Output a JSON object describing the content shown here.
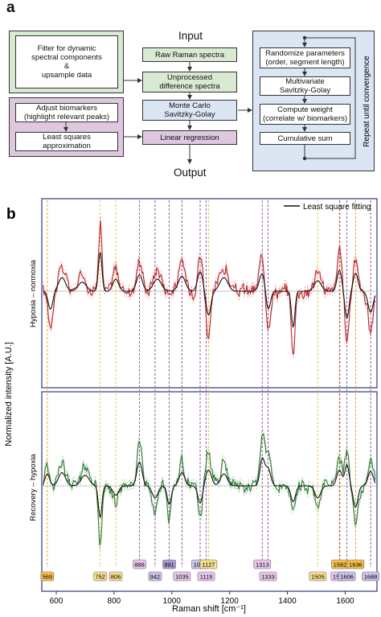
{
  "panel_a": {
    "letter": "a",
    "input_label": "Input",
    "output_label": "Output",
    "filter_box": "Filter for dynamic\nspectral components\n&\nupsample data",
    "adjust_box": "Adjust biomarkers\n(highlight relevant peaks)",
    "lsq_box": "Least squares\napproximation",
    "center_boxes": [
      "Raw Raman spectra",
      "Unprocessed\ndifference spectra",
      "Monte Carlo\nSavitzky-Golay",
      "Linear regression"
    ],
    "right_boxes": [
      "Randomize parameters\n(order, segment length)",
      "Multivariate\nSavitzky-Golay",
      "Compute weight\n(correlate w/ biomarkers)",
      "Cumulative sum"
    ],
    "repeat_label": "Repeat until convergence",
    "colors": {
      "green": "#d9ead3",
      "blue": "#dbe6f4",
      "purple": "#ddc8e0"
    }
  },
  "panel_b": {
    "letter": "b",
    "legend_label": "Least square fitting",
    "ylabel": "Normalized intensity [A.U.]",
    "top_ylabel": "Hypoxia – normoxia",
    "bottom_ylabel": "Recovery – hypoxia",
    "xlabel": "Raman shift [cm⁻¹]"
  },
  "chart_data": {
    "type": "line",
    "xlabel": "Raman shift [cm⁻¹]",
    "ylabel": "Normalized intensity [A.U.]",
    "xlim": [
      550,
      1710
    ],
    "x_ticks": [
      600,
      800,
      1000,
      1200,
      1400,
      1600
    ],
    "panels": [
      {
        "name": "Hypoxia – normoxia",
        "series_color": "#c0272d"
      },
      {
        "name": "Recovery – hypoxia",
        "series_color": "#2e7d32"
      }
    ],
    "fit_color": "#111111",
    "peaks": [
      {
        "x": 569,
        "label": "569",
        "color": "#f5c04a",
        "row": 1
      },
      {
        "x": 752,
        "label": "752",
        "color": "#f5e08a",
        "row": 1
      },
      {
        "x": 806,
        "label": "806",
        "color": "#f5e08a",
        "row": 1
      },
      {
        "x": 888,
        "label": "888",
        "color": "#e8c8e8",
        "row": 0
      },
      {
        "x": 942,
        "label": "942",
        "color": "#c9c6e6",
        "row": 1
      },
      {
        "x": 991,
        "label": "991",
        "color": "#a99ad2",
        "row": 0
      },
      {
        "x": 1035,
        "label": "1035",
        "color": "#e8c8e8",
        "row": 1
      },
      {
        "x": 1098,
        "label": "1098",
        "color": "#c9c6e6",
        "row": 0
      },
      {
        "x": 1119,
        "label": "1119",
        "color": "#e8c8e8",
        "row": 1
      },
      {
        "x": 1127,
        "label": "1127",
        "color": "#f5e08a",
        "row": 0
      },
      {
        "x": 1313,
        "label": "1313",
        "color": "#e8c8e8",
        "row": 0
      },
      {
        "x": 1333,
        "label": "1333",
        "color": "#e8c8e8",
        "row": 1
      },
      {
        "x": 1505,
        "label": "1505",
        "color": "#f5e08a",
        "row": 1
      },
      {
        "x": 1580,
        "label": "1580",
        "color": "#e8c8e8",
        "row": 1
      },
      {
        "x": 1582,
        "label": "1582",
        "color": "#f5c04a",
        "row": 0
      },
      {
        "x": 1606,
        "label": "1606",
        "color": "#c9c6e6",
        "row": 1
      },
      {
        "x": 1636,
        "label": "1636",
        "color": "#f5c04a",
        "row": 0
      },
      {
        "x": 1688,
        "label": "1688",
        "color": "#c9c6e6",
        "row": 1
      }
    ]
  }
}
